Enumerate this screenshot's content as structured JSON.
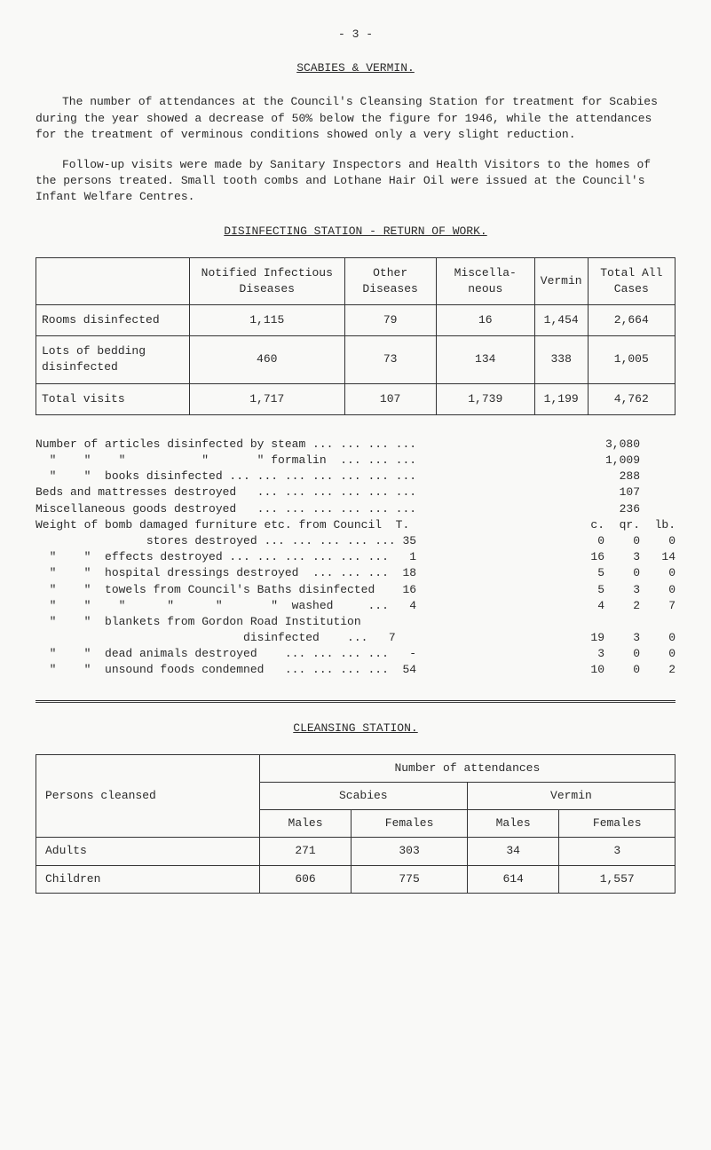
{
  "page_number": "- 3 -",
  "title": "SCABIES & VERMIN.",
  "para1": "The number of attendances at the Council's Cleansing Station for treatment for Scabies during the year showed a decrease of 50% below the figure for 1946, while the attendances for the treatment of verminous conditions showed only a very slight reduction.",
  "para2": "Follow-up visits were made by Sanitary Inspectors and Health Visitors to the homes of the persons treated.  Small tooth combs and Lothane Hair Oil were issued at the Council's Infant Welfare Centres.",
  "table1_title": "DISINFECTING STATION - RETURN OF WORK.",
  "table1": {
    "headers": [
      "",
      "Notified Infectious Diseases",
      "Other Diseases",
      "Miscella- neous",
      "Vermin",
      "Total All Cases"
    ],
    "rows": [
      [
        "Rooms disinfected",
        "1,115",
        "79",
        "16",
        "1,454",
        "2,664"
      ],
      [
        "Lots of bedding disinfected",
        "460",
        "73",
        "134",
        "338",
        "1,005"
      ],
      [
        "Total visits",
        "1,717",
        "107",
        "1,739",
        "1,199",
        "4,762"
      ]
    ]
  },
  "list": [
    {
      "label": "Number of articles disinfected by steam ... ... ... ...",
      "vals": [
        "",
        "",
        "3,080",
        ""
      ]
    },
    {
      "label": "  \"    \"    \"           \"       \" formalin  ... ... ...",
      "vals": [
        "",
        "",
        "1,009",
        ""
      ]
    },
    {
      "label": "  \"    \"  books disinfected ... ... ... ... ... ... ...",
      "vals": [
        "",
        "",
        "288",
        ""
      ]
    },
    {
      "label": "Beds and mattresses destroyed   ... ... ... ... ... ...",
      "vals": [
        "",
        "",
        "107",
        ""
      ]
    },
    {
      "label": "Miscellaneous goods destroyed   ... ... ... ... ... ...",
      "vals": [
        "",
        "",
        "236",
        ""
      ]
    },
    {
      "label": "Weight of bomb damaged furniture etc. from Council  T.",
      "vals": [
        "c.",
        "qr.",
        "lb."
      ]
    },
    {
      "label": "                stores destroyed ... ... ... ... ... 35",
      "vals": [
        "0",
        "0",
        "0"
      ]
    },
    {
      "label": "  \"    \"  effects destroyed ... ... ... ... ... ...   1",
      "vals": [
        "16",
        "3",
        "14"
      ]
    },
    {
      "label": "  \"    \"  hospital dressings destroyed  ... ... ...  18",
      "vals": [
        "5",
        "0",
        "0"
      ]
    },
    {
      "label": "  \"    \"  towels from Council's Baths disinfected    16",
      "vals": [
        "5",
        "3",
        "0"
      ]
    },
    {
      "label": "  \"    \"    \"      \"      \"       \"  washed     ...   4",
      "vals": [
        "4",
        "2",
        "7"
      ]
    },
    {
      "label": "  \"    \"  blankets from Gordon Road Institution",
      "vals": [
        "",
        "",
        ""
      ]
    },
    {
      "label": "                              disinfected    ...   7",
      "vals": [
        "19",
        "3",
        "0"
      ]
    },
    {
      "label": "  \"    \"  dead animals destroyed    ... ... ... ...   -",
      "vals": [
        "3",
        "0",
        "0"
      ]
    },
    {
      "label": "  \"    \"  unsound foods condemned   ... ... ... ...  54",
      "vals": [
        "10",
        "0",
        "2"
      ]
    }
  ],
  "table2_title": "CLEANSING STATION.",
  "table2": {
    "super_header": "Number of attendances",
    "col_group1": "Scabies",
    "col_group2": "Vermin",
    "row_header": "Persons cleansed",
    "sub_headers": [
      "Males",
      "Females",
      "Males",
      "Females"
    ],
    "rows": [
      [
        "Adults",
        "271",
        "303",
        "34",
        "3"
      ],
      [
        "Children",
        "606",
        "775",
        "614",
        "1,557"
      ]
    ]
  }
}
